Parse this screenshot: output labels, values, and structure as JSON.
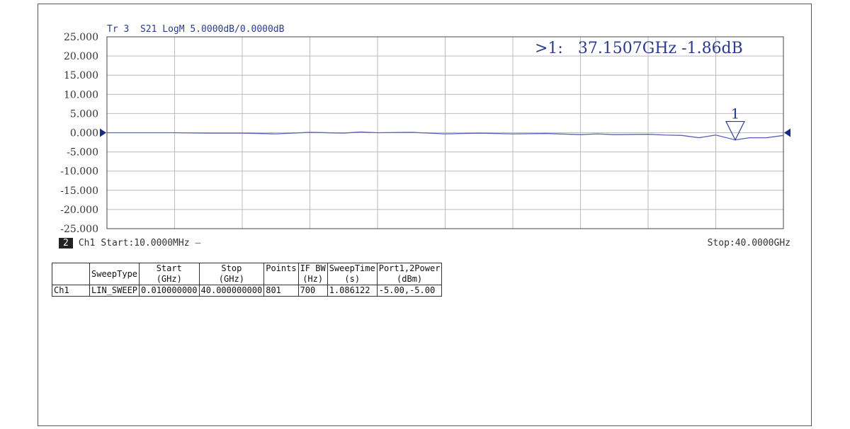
{
  "chart_data": {
    "type": "line",
    "trace_header": "Tr 3  S21 LogM 5.0000dB/0.0000dB",
    "ylim": [
      -25,
      25
    ],
    "xlim_ghz": [
      0.01,
      40
    ],
    "y_ticks": [
      "25.000",
      "20.000",
      "15.000",
      "10.000",
      "5.000",
      "0.000",
      "-5.000",
      "-10.000",
      "-15.000",
      "-20.000",
      "-25.000"
    ],
    "grid": true,
    "series": [
      {
        "color": "#5a63b8",
        "x": [
          0.01,
          2,
          4,
          6,
          8,
          10,
          12,
          14,
          15,
          16,
          18,
          20,
          22,
          24,
          26,
          28,
          29,
          30,
          32,
          33,
          34,
          35,
          36,
          37.1507,
          38,
          39,
          40
        ],
        "y": [
          0,
          0,
          0,
          -0.1,
          -0.1,
          -0.3,
          0.1,
          -0.1,
          0.2,
          0,
          0.1,
          -0.3,
          -0.1,
          -0.3,
          -0.2,
          -0.5,
          -0.3,
          -0.5,
          -0.4,
          -0.6,
          -0.7,
          -1.3,
          -0.6,
          -1.86,
          -1.3,
          -1.3,
          -0.7
        ]
      }
    ],
    "marker": {
      "label": "1",
      "readout": ">1:   37.1507GHz -1.86dB",
      "x": 37.1507,
      "y": -1.86
    },
    "ref_level": 0
  },
  "channel": {
    "num": "2",
    "name": "Ch1",
    "start": "Start:10.0000MHz",
    "stop": "Stop:40.0000GHz"
  },
  "table": {
    "headers": [
      [
        "",
        "SweepType",
        "Start",
        "Stop",
        "Points",
        "IF BW",
        "SweepTime",
        "Port1,2Power"
      ],
      [
        "",
        "",
        "(GHz)",
        "(GHz)",
        "",
        "(Hz)",
        "(s)",
        "(dBm)"
      ]
    ],
    "rows": [
      [
        "Ch1",
        "LIN_SWEEP",
        "0.010000000",
        "40.000000000",
        "801",
        "700",
        "1.086122",
        "-5.00,-5.00"
      ]
    ]
  }
}
